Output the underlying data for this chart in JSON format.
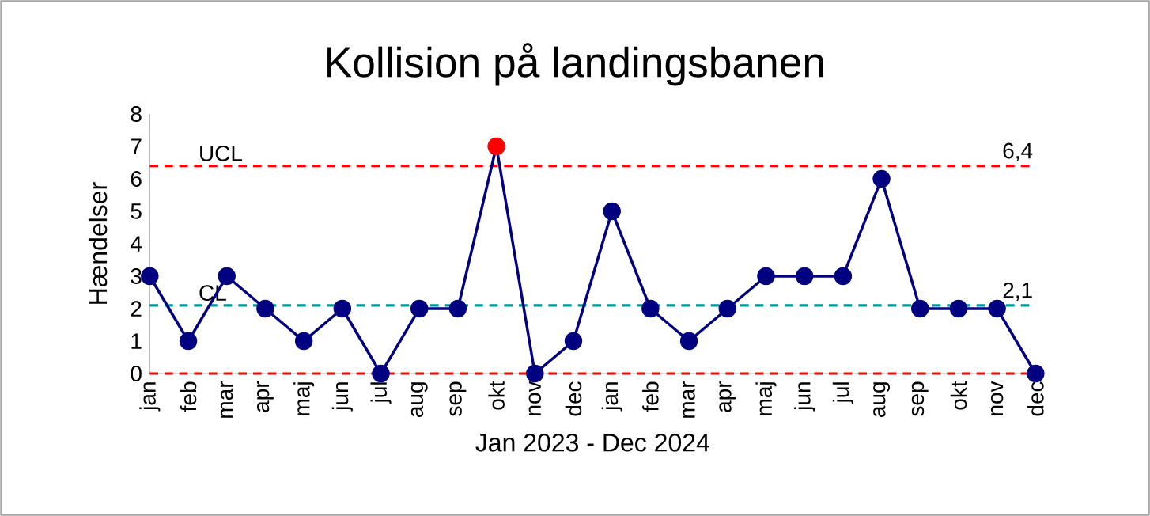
{
  "chart_data": {
    "type": "line",
    "title": "Kollision på landingsbanen",
    "xlabel": "Jan 2023 - Dec 2024",
    "ylabel": "Hændelser",
    "categories": [
      "jan",
      "feb",
      "mar",
      "apr",
      "maj",
      "jun",
      "jul",
      "aug",
      "sep",
      "okt",
      "nov",
      "dec",
      "jan",
      "feb",
      "mar",
      "apr",
      "maj",
      "jun",
      "jul",
      "aug",
      "sep",
      "okt",
      "nov",
      "dec"
    ],
    "series": [
      {
        "color": "#000080",
        "values": [
          3,
          1,
          3,
          2,
          1,
          2,
          0,
          2,
          2,
          7,
          0,
          1,
          5,
          2,
          1,
          2,
          3,
          3,
          3,
          6,
          2,
          2,
          2,
          0
        ],
        "colors": [
          "#000080",
          "#000080",
          "#000080",
          "#000080",
          "#000080",
          "#000080",
          "#000080",
          "#000080",
          "#000080",
          "#ff0000",
          "#000080",
          "#000080",
          "#000080",
          "#000080",
          "#000080",
          "#000080",
          "#000080",
          "#000080",
          "#000080",
          "#000080",
          "#000080",
          "#000080",
          "#000080",
          "#000080"
        ]
      }
    ],
    "ylim": [
      0,
      8
    ],
    "yticks": [
      0,
      1,
      2,
      3,
      4,
      5,
      6,
      7,
      8
    ],
    "marker": "circle",
    "grid": false,
    "ref_lines": [
      {
        "axis": "y",
        "value": 6.4,
        "label": "UCL",
        "color": "#ff0000",
        "line_style": "dashed"
      },
      {
        "axis": "y",
        "value": 2.1,
        "label": "CL",
        "color": "#009999",
        "line_style": "dashed"
      },
      {
        "axis": "y",
        "value": 0,
        "color": "#ff0000",
        "line_style": "dashed"
      }
    ],
    "annotations": [
      "6,4",
      "2,1"
    ]
  }
}
